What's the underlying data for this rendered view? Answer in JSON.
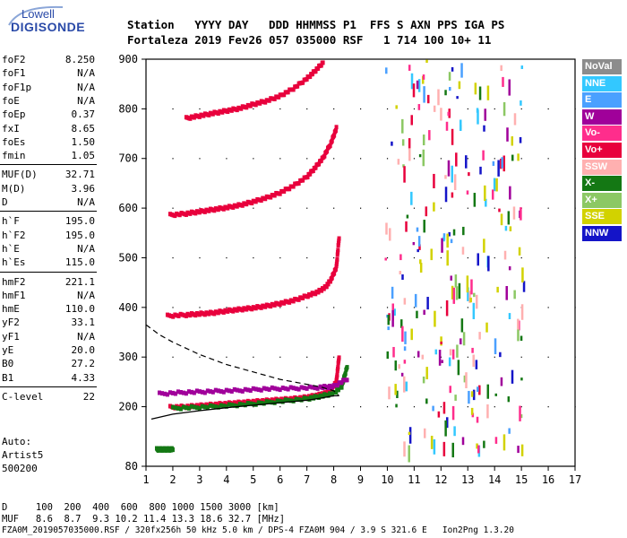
{
  "logo": {
    "line1": "Lowell",
    "line2": "DIGISONDE"
  },
  "header": {
    "line1": "Station   YYYY DAY   DDD HHMMSS P1  FFS S AXN PPS IGA PS",
    "line2": "Fortaleza 2019 Fev26 057 035000 RSF   1 714 100 10+ 11"
  },
  "params": [
    {
      "name": "foF2",
      "value": "8.250"
    },
    {
      "name": "foF1",
      "value": "N/A"
    },
    {
      "name": "foF1p",
      "value": "N/A"
    },
    {
      "name": "foE",
      "value": "N/A"
    },
    {
      "name": "foEp",
      "value": "0.37"
    },
    {
      "name": "fxI",
      "value": "8.65"
    },
    {
      "name": "foEs",
      "value": "1.50"
    },
    {
      "name": "fmin",
      "value": "1.05"
    },
    {
      "name": "MUF(D)",
      "value": "32.71"
    },
    {
      "name": "M(D)",
      "value": "3.96"
    },
    {
      "name": "D",
      "value": "N/A"
    },
    {
      "name": "h`F",
      "value": "195.0"
    },
    {
      "name": "h`F2",
      "value": "195.0"
    },
    {
      "name": "h`E",
      "value": "N/A"
    },
    {
      "name": "h`Es",
      "value": "115.0"
    },
    {
      "name": "hmF2",
      "value": "221.1"
    },
    {
      "name": "hmF1",
      "value": "N/A"
    },
    {
      "name": "hmE",
      "value": "110.0"
    },
    {
      "name": "yF2",
      "value": "33.1"
    },
    {
      "name": "yF1",
      "value": "N/A"
    },
    {
      "name": "yE",
      "value": "20.0"
    },
    {
      "name": "B0",
      "value": "27.2"
    },
    {
      "name": "B1",
      "value": "4.33"
    },
    {
      "name": "C-level",
      "value": "22"
    }
  ],
  "footer_left": {
    "auto": "Auto:",
    "artist": "Artist5",
    "code": "500200"
  },
  "footer": {
    "d_row": "D     100  200  400  600  800 1000 1500 3000 [km]",
    "muf_row": "MUF   8.6  8.7  9.3 10.2 11.4 13.3 18.6 32.7 [MHz]",
    "file_row": "FZA0M_2019057035000.RSF / 320fx256h 50 kHz 5.0 km / DPS-4 FZA0M 904 / 3.9 S 321.6 E   Ion2Png 1.3.20"
  },
  "legend": [
    {
      "label": "NoVal",
      "color": "#8c8c8c"
    },
    {
      "label": "NNE",
      "color": "#33c8ff"
    },
    {
      "label": "E",
      "color": "#4aa0ff"
    },
    {
      "label": "W",
      "color": "#a0009a"
    },
    {
      "label": "Vo-",
      "color": "#ff2d8c"
    },
    {
      "label": "Vo+",
      "color": "#e8003c"
    },
    {
      "label": "SSW",
      "color": "#ffb0b0"
    },
    {
      "label": "X-",
      "color": "#147814"
    },
    {
      "label": "X+",
      "color": "#8cc864"
    },
    {
      "label": "SSE",
      "color": "#d2d200"
    },
    {
      "label": "NNW",
      "color": "#1414c8"
    }
  ],
  "chart_data": {
    "type": "scatter",
    "xlim": [
      1,
      17
    ],
    "ylim": [
      80,
      900
    ],
    "x_ticks": [
      1,
      2,
      3,
      4,
      5,
      6,
      7,
      8,
      9,
      10,
      11,
      12,
      13,
      14,
      15,
      16,
      17
    ],
    "y_ticks": [
      80,
      200,
      300,
      400,
      500,
      600,
      700,
      800,
      900
    ],
    "traces": [
      {
        "name": "o-trace 1F",
        "color": "#e8003c",
        "x": [
          1.9,
          2.5,
          3.0,
          3.5,
          4.0,
          4.5,
          5.0,
          5.5,
          6.0,
          6.5,
          7.0,
          7.4,
          7.7,
          7.9,
          8.1,
          8.2
        ],
        "y": [
          198,
          199,
          201,
          203,
          205,
          207,
          209,
          211,
          213,
          215,
          218,
          222,
          226,
          232,
          250,
          300
        ]
      },
      {
        "name": "x-trace 1F",
        "color": "#147814",
        "x": [
          2.0,
          3.0,
          4.0,
          5.0,
          6.0,
          7.0,
          7.5,
          8.0,
          8.3,
          8.5
        ],
        "y": [
          196,
          198,
          201,
          205,
          210,
          215,
          220,
          226,
          240,
          280
        ]
      },
      {
        "name": "o-trace 2F",
        "color": "#e8003c",
        "x": [
          1.8,
          2.5,
          3.0,
          3.5,
          4.0,
          4.5,
          5.0,
          5.5,
          6.0,
          6.5,
          7.0,
          7.4,
          7.7,
          7.9,
          8.1,
          8.2
        ],
        "y": [
          382,
          384,
          386,
          388,
          392,
          395,
          398,
          402,
          407,
          413,
          422,
          430,
          440,
          455,
          480,
          540
        ]
      },
      {
        "name": "o-trace 3F",
        "color": "#e8003c",
        "x": [
          1.9,
          2.5,
          3.0,
          3.5,
          4.0,
          4.5,
          5.0,
          5.5,
          6.0,
          6.5,
          7.0,
          7.3,
          7.6,
          7.9,
          8.1
        ],
        "y": [
          585,
          588,
          592,
          596,
          600,
          605,
          612,
          620,
          630,
          644,
          662,
          680,
          700,
          730,
          760
        ]
      },
      {
        "name": "o-trace 4F",
        "color": "#e8003c",
        "x": [
          2.5,
          3.0,
          3.5,
          4.0,
          4.5,
          5.0,
          5.5,
          6.0,
          6.5,
          7.0,
          7.3,
          7.6
        ],
        "y": [
          780,
          785,
          790,
          795,
          800,
          808,
          815,
          825,
          840,
          860,
          875,
          892
        ]
      },
      {
        "name": "spread W",
        "color": "#a0009a",
        "x": [
          1.5,
          2.5,
          3.5,
          4.5,
          5.5,
          6.5,
          7.5,
          8.0,
          8.5
        ],
        "y": [
          225,
          228,
          230,
          232,
          235,
          236,
          238,
          240,
          255
        ]
      },
      {
        "name": "Es 1",
        "color": "#147814",
        "x": [
          1.4,
          1.6,
          1.8,
          2.0
        ],
        "y": [
          113,
          113,
          113,
          113
        ]
      }
    ],
    "profile": {
      "name": "electron density profile",
      "x": [
        1.2,
        2.0,
        3.0,
        4.0,
        5.0,
        6.0,
        7.0,
        7.5,
        8.0,
        8.2
      ],
      "y": [
        175,
        185,
        192,
        198,
        203,
        208,
        213,
        217,
        222,
        222
      ]
    },
    "extrapolation": {
      "name": "topside extrapolation",
      "x": [
        1.0,
        1.5,
        2.0,
        3.0,
        4.0,
        5.0,
        6.0,
        7.0,
        7.5,
        8.0,
        8.2
      ],
      "y": [
        365,
        345,
        330,
        305,
        285,
        270,
        255,
        245,
        240,
        232,
        222
      ]
    }
  }
}
